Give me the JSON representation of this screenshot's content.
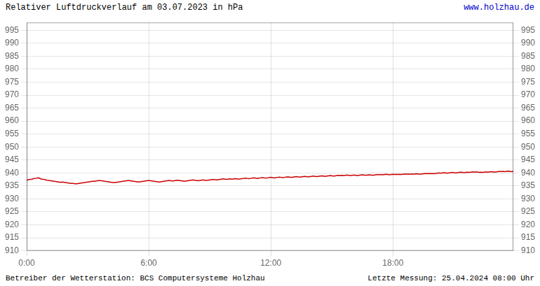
{
  "chart_data": {
    "type": "line",
    "title": "Relativer Luftdruckverlauf am 03.07.2023 in hPa",
    "annotations": [
      {
        "text": "www.holzhau.de",
        "color": "#0000cc"
      },
      {
        "text": "Betreiber der Wetterstation: BCS Computersysteme Holzhau"
      },
      {
        "text": "Letzte Messung: 25.04.2024 08:00 Uhr"
      }
    ],
    "color": "#cc0000",
    "grid": true,
    "ylim": [
      910,
      998
    ],
    "yticks": [
      910,
      915,
      920,
      925,
      930,
      935,
      940,
      945,
      950,
      955,
      960,
      965,
      970,
      975,
      980,
      985,
      990,
      995
    ],
    "y2lim": [
      910,
      998
    ],
    "y2ticks": [
      910,
      915,
      920,
      925,
      930,
      935,
      940,
      945,
      950,
      955,
      960,
      965,
      970,
      975,
      980,
      985,
      990,
      995
    ],
    "categories": [
      "0:00",
      null,
      null,
      null,
      null,
      null,
      null,
      null,
      null,
      null,
      null,
      null,
      null,
      null,
      null,
      null,
      null,
      null,
      null,
      null,
      null,
      null,
      null,
      null,
      null,
      null,
      null,
      null,
      null,
      null,
      null,
      null,
      null,
      null,
      null,
      null,
      null,
      null,
      null,
      null,
      null,
      null,
      null,
      null,
      null,
      null,
      null,
      null,
      null,
      null,
      null,
      null,
      null,
      null,
      null,
      null,
      null,
      null,
      null,
      null,
      null,
      null,
      null,
      null,
      null,
      null,
      null,
      null,
      null,
      null,
      null,
      null,
      "6:00",
      null,
      null,
      null,
      null,
      null,
      null,
      null,
      null,
      null,
      null,
      null,
      null,
      null,
      null,
      null,
      null,
      null,
      null,
      null,
      null,
      null,
      null,
      null,
      null,
      null,
      null,
      null,
      null,
      null,
      null,
      null,
      null,
      null,
      null,
      null,
      null,
      null,
      null,
      null,
      null,
      null,
      null,
      null,
      null,
      null,
      null,
      null,
      null,
      null,
      null,
      null,
      null,
      null,
      null,
      null,
      null,
      null,
      null,
      null,
      null,
      null,
      null,
      null,
      null,
      null,
      null,
      null,
      null,
      null,
      null,
      null,
      "12:00",
      null,
      null,
      null,
      null,
      null,
      null,
      null,
      null,
      null,
      null,
      null,
      null,
      null,
      null,
      null,
      null,
      null,
      null,
      null,
      null,
      null,
      null,
      null,
      null,
      null,
      null,
      null,
      null,
      null,
      null,
      null,
      null,
      null,
      null,
      null,
      null,
      null,
      null,
      null,
      null,
      null,
      null,
      null,
      null,
      null,
      null,
      null,
      null,
      null,
      null,
      null,
      null,
      null,
      null,
      null,
      null,
      null,
      null,
      null,
      null,
      null,
      null,
      null,
      null,
      null,
      null,
      null,
      null,
      null,
      null,
      null,
      "18:00",
      null,
      null,
      null,
      null,
      null,
      null,
      null,
      null,
      null,
      null,
      null,
      null,
      null,
      null,
      null,
      null,
      null,
      null,
      null,
      null,
      null,
      null,
      null,
      null,
      null,
      null,
      null,
      null,
      null,
      null,
      null,
      null,
      null,
      null,
      null,
      null,
      null,
      null,
      null,
      null,
      null,
      null,
      null,
      null,
      null,
      null,
      null,
      null,
      null,
      null,
      null,
      null,
      null,
      null,
      null,
      null,
      null,
      null,
      null,
      null,
      null,
      null,
      null,
      null,
      null,
      null,
      null,
      null,
      null,
      null,
      null
    ],
    "values": [
      937.2,
      937.4,
      937.5,
      937.6,
      937.8,
      937.9,
      938.0,
      938.1,
      937.8,
      937.6,
      937.5,
      937.4,
      937.2,
      937.1,
      937.0,
      936.9,
      936.8,
      936.7,
      936.6,
      936.5,
      936.4,
      936.5,
      936.4,
      936.3,
      936.2,
      936.1,
      936.0,
      936.0,
      935.9,
      935.8,
      935.9,
      936.0,
      936.1,
      936.2,
      936.3,
      936.4,
      936.5,
      936.6,
      936.7,
      936.8,
      936.8,
      936.9,
      937.0,
      937.1,
      937.0,
      936.9,
      936.8,
      936.7,
      936.6,
      936.5,
      936.4,
      936.3,
      936.3,
      936.4,
      936.5,
      936.6,
      936.7,
      936.8,
      936.9,
      937.0,
      937.1,
      937.0,
      936.9,
      936.8,
      936.7,
      936.6,
      936.5,
      936.6,
      936.7,
      936.8,
      936.9,
      937.0,
      937.1,
      937.0,
      936.9,
      936.8,
      936.7,
      936.6,
      936.5,
      936.6,
      936.7,
      936.8,
      936.9,
      937.0,
      937.1,
      937.0,
      936.9,
      937.0,
      937.1,
      937.2,
      937.1,
      937.0,
      936.9,
      936.8,
      936.9,
      937.0,
      937.1,
      937.2,
      937.3,
      937.2,
      937.1,
      937.0,
      937.1,
      937.2,
      937.3,
      937.2,
      937.1,
      937.2,
      937.3,
      937.4,
      937.5,
      937.4,
      937.3,
      937.4,
      937.5,
      937.6,
      937.7,
      937.6,
      937.5,
      937.6,
      937.7,
      937.6,
      937.7,
      937.8,
      937.7,
      937.6,
      937.7,
      937.8,
      937.9,
      938.0,
      937.9,
      937.8,
      937.9,
      938.0,
      938.1,
      938.0,
      937.9,
      938.0,
      938.1,
      938.2,
      938.1,
      938.0,
      938.1,
      938.2,
      938.3,
      938.2,
      938.1,
      938.2,
      938.3,
      938.4,
      938.3,
      938.2,
      938.3,
      938.4,
      938.5,
      938.4,
      938.3,
      938.4,
      938.5,
      938.6,
      938.5,
      938.4,
      938.5,
      938.6,
      938.7,
      938.6,
      938.5,
      938.6,
      938.7,
      938.8,
      938.7,
      938.6,
      938.7,
      938.8,
      938.9,
      938.8,
      938.7,
      938.8,
      938.9,
      939.0,
      938.9,
      938.8,
      938.9,
      939.0,
      939.1,
      939.0,
      939.1,
      939.0,
      939.1,
      939.2,
      939.1,
      939.0,
      939.1,
      939.2,
      939.1,
      939.0,
      939.1,
      939.2,
      939.3,
      939.2,
      939.1,
      939.2,
      939.3,
      939.2,
      939.1,
      939.2,
      939.3,
      939.4,
      939.3,
      939.4,
      939.3,
      939.4,
      939.5,
      939.4,
      939.3,
      939.4,
      939.5,
      939.4,
      939.5,
      939.4,
      939.5,
      939.4,
      939.5,
      939.6,
      939.5,
      939.6,
      939.5,
      939.6,
      939.5,
      939.6,
      939.7,
      939.6,
      939.5,
      939.6,
      939.7,
      939.8,
      939.7,
      939.8,
      939.7,
      939.8,
      939.7,
      939.8,
      939.9,
      940.0,
      939.9,
      940.0,
      940.1,
      940.0,
      939.9,
      940.0,
      940.1,
      940.2,
      940.1,
      940.0,
      940.1,
      940.2,
      940.3,
      940.2,
      940.1,
      940.2,
      940.3,
      940.2,
      940.3,
      940.4,
      940.3,
      940.4,
      940.3,
      940.2,
      940.3,
      940.2,
      940.3,
      940.4,
      940.3,
      940.4,
      940.5,
      940.4,
      940.3,
      940.4,
      940.5,
      940.6,
      940.5,
      940.6,
      940.5,
      940.6,
      940.7,
      940.6,
      940.5,
      940.6
    ]
  }
}
